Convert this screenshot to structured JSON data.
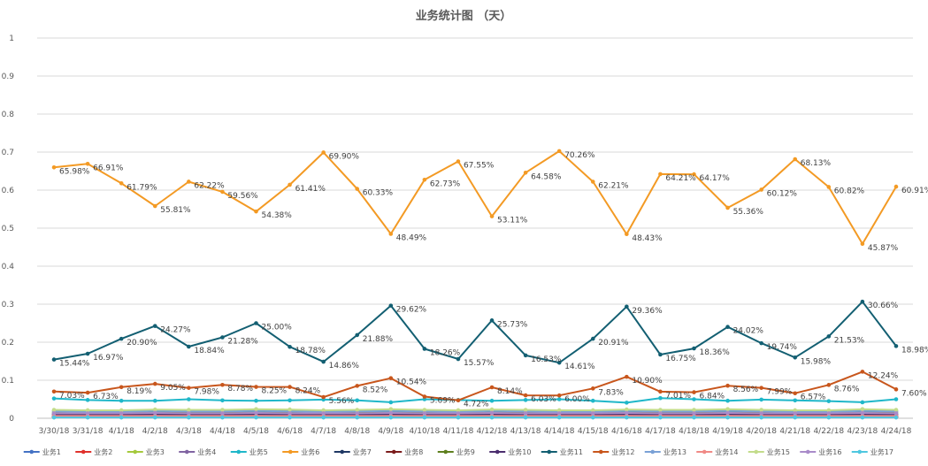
{
  "chart_data": {
    "type": "line",
    "title": "业务统计图 （天）",
    "xlabel": "",
    "ylabel": "",
    "ylim": [
      0,
      1
    ],
    "yticks": [
      "0",
      "0.1",
      "0.2",
      "0.3",
      "0.4",
      "0.5",
      "0.6",
      "0.7",
      "0.8",
      "0.9",
      "1"
    ],
    "grid": true,
    "legend_position": "bottom",
    "categories": [
      "3/30/18",
      "3/31/18",
      "4/1/18",
      "4/2/18",
      "4/3/18",
      "4/4/18",
      "4/5/18",
      "4/6/18",
      "4/7/18",
      "4/8/18",
      "4/9/18",
      "4/10/18",
      "4/11/18",
      "4/12/18",
      "4/13/18",
      "4/14/18",
      "4/15/18",
      "4/16/18",
      "4/17/18",
      "4/18/18",
      "4/19/18",
      "4/20/18",
      "4/21/18",
      "4/22/18",
      "4/23/18",
      "4/24/18"
    ],
    "series": [
      {
        "name": "业务1",
        "color": "#4472c4",
        "values": [
          0.012,
          0.012,
          0.012,
          0.013,
          0.012,
          0.012,
          0.013,
          0.012,
          0.011,
          0.011,
          0.012,
          0.012,
          0.012,
          0.012,
          0.012,
          0.011,
          0.011,
          0.012,
          0.012,
          0.012,
          0.012,
          0.012,
          0.011,
          0.011,
          0.012,
          0.012
        ]
      },
      {
        "name": "业务2",
        "color": "#e0312c",
        "values": [
          0.005,
          0.005,
          0.005,
          0.005,
          0.005,
          0.005,
          0.005,
          0.005,
          0.005,
          0.005,
          0.005,
          0.005,
          0.005,
          0.005,
          0.005,
          0.005,
          0.005,
          0.005,
          0.005,
          0.005,
          0.005,
          0.005,
          0.005,
          0.005,
          0.005,
          0.005
        ]
      },
      {
        "name": "业务3",
        "color": "#a5c93d",
        "values": [
          0.02,
          0.018,
          0.018,
          0.02,
          0.019,
          0.02,
          0.022,
          0.021,
          0.018,
          0.02,
          0.022,
          0.021,
          0.02,
          0.022,
          0.02,
          0.018,
          0.019,
          0.021,
          0.02,
          0.02,
          0.022,
          0.02,
          0.019,
          0.019,
          0.022,
          0.02
        ]
      },
      {
        "name": "业务4",
        "color": "#8064a2",
        "values": [
          0.008,
          0.008,
          0.008,
          0.009,
          0.008,
          0.008,
          0.009,
          0.008,
          0.008,
          0.008,
          0.009,
          0.008,
          0.008,
          0.009,
          0.008,
          0.008,
          0.008,
          0.009,
          0.008,
          0.008,
          0.009,
          0.008,
          0.008,
          0.008,
          0.009,
          0.008
        ]
      },
      {
        "name": "业务5",
        "color": "#1fb7c9",
        "values": [
          0.052,
          0.048,
          0.046,
          0.046,
          0.05,
          0.047,
          0.046,
          0.047,
          0.049,
          0.047,
          0.042,
          0.05,
          0.048,
          0.046,
          0.048,
          0.05,
          0.046,
          0.041,
          0.053,
          0.05,
          0.046,
          0.049,
          0.047,
          0.045,
          0.042,
          0.05
        ]
      },
      {
        "name": "业务6",
        "color": "#f39a24",
        "values": [
          0.6598,
          0.6691,
          0.6179,
          0.5581,
          0.6222,
          0.5956,
          0.5438,
          0.6141,
          0.699,
          0.6033,
          0.4849,
          0.6273,
          0.6755,
          0.5311,
          0.6458,
          0.7026,
          0.6221,
          0.4843,
          0.6421,
          0.6417,
          0.5536,
          0.6012,
          0.6813,
          0.6082,
          0.4587,
          0.6091
        ]
      },
      {
        "name": "业务7",
        "color": "#1f3864",
        "values": [
          0.003,
          0.003,
          0.003,
          0.003,
          0.003,
          0.003,
          0.003,
          0.003,
          0.003,
          0.003,
          0.003,
          0.003,
          0.003,
          0.003,
          0.003,
          0.003,
          0.003,
          0.003,
          0.003,
          0.003,
          0.003,
          0.003,
          0.003,
          0.003,
          0.003,
          0.003
        ]
      },
      {
        "name": "业务8",
        "color": "#7b1c1c",
        "values": [
          0.004,
          0.004,
          0.004,
          0.004,
          0.004,
          0.004,
          0.004,
          0.004,
          0.004,
          0.004,
          0.004,
          0.004,
          0.004,
          0.004,
          0.004,
          0.004,
          0.004,
          0.004,
          0.004,
          0.004,
          0.004,
          0.004,
          0.004,
          0.004,
          0.004,
          0.004
        ]
      },
      {
        "name": "业务9",
        "color": "#5e7f1e",
        "values": [
          0.015,
          0.014,
          0.015,
          0.016,
          0.015,
          0.016,
          0.017,
          0.016,
          0.014,
          0.015,
          0.017,
          0.016,
          0.015,
          0.017,
          0.016,
          0.014,
          0.015,
          0.016,
          0.016,
          0.015,
          0.017,
          0.016,
          0.015,
          0.015,
          0.017,
          0.016
        ]
      },
      {
        "name": "业务10",
        "color": "#4b2d6e",
        "values": [
          0.01,
          0.01,
          0.01,
          0.011,
          0.01,
          0.01,
          0.011,
          0.01,
          0.01,
          0.01,
          0.011,
          0.01,
          0.01,
          0.011,
          0.01,
          0.01,
          0.01,
          0.011,
          0.01,
          0.01,
          0.011,
          0.01,
          0.01,
          0.01,
          0.011,
          0.01
        ]
      },
      {
        "name": "业务11",
        "color": "#135f72",
        "values": [
          0.1544,
          0.1697,
          0.209,
          0.2427,
          0.1884,
          0.2128,
          0.25,
          0.1878,
          0.1486,
          0.2188,
          0.2962,
          0.1826,
          0.1557,
          0.2573,
          0.1653,
          0.1461,
          0.2091,
          0.2936,
          0.1675,
          0.1836,
          0.2402,
          0.1974,
          0.1598,
          0.2153,
          0.3066,
          0.1898
        ]
      },
      {
        "name": "业务12",
        "color": "#c8561c",
        "values": [
          0.0703,
          0.0673,
          0.0819,
          0.0905,
          0.0798,
          0.0878,
          0.0825,
          0.0824,
          0.0556,
          0.0852,
          0.1054,
          0.0569,
          0.0472,
          0.0814,
          0.0603,
          0.06,
          0.0783,
          0.109,
          0.0701,
          0.0684,
          0.0856,
          0.0799,
          0.0657,
          0.0876,
          0.1224,
          0.076
        ]
      },
      {
        "name": "业务13",
        "color": "#7aa1d6",
        "values": [
          0.018,
          0.017,
          0.017,
          0.019,
          0.018,
          0.018,
          0.019,
          0.018,
          0.017,
          0.018,
          0.019,
          0.018,
          0.017,
          0.019,
          0.018,
          0.017,
          0.017,
          0.019,
          0.018,
          0.018,
          0.019,
          0.018,
          0.017,
          0.017,
          0.019,
          0.018
        ]
      },
      {
        "name": "业务14",
        "color": "#f08a86",
        "values": [
          0.006,
          0.006,
          0.006,
          0.006,
          0.006,
          0.006,
          0.006,
          0.006,
          0.006,
          0.006,
          0.006,
          0.006,
          0.006,
          0.006,
          0.006,
          0.006,
          0.006,
          0.006,
          0.006,
          0.006,
          0.006,
          0.006,
          0.006,
          0.006,
          0.006,
          0.006
        ]
      },
      {
        "name": "业务15",
        "color": "#c3dc8b",
        "values": [
          0.022,
          0.021,
          0.021,
          0.023,
          0.022,
          0.022,
          0.024,
          0.023,
          0.021,
          0.022,
          0.024,
          0.022,
          0.021,
          0.023,
          0.022,
          0.021,
          0.021,
          0.023,
          0.022,
          0.022,
          0.024,
          0.022,
          0.021,
          0.021,
          0.024,
          0.022
        ]
      },
      {
        "name": "业务16",
        "color": "#a98bc9",
        "values": [
          0.013,
          0.013,
          0.013,
          0.014,
          0.013,
          0.013,
          0.014,
          0.013,
          0.013,
          0.013,
          0.014,
          0.013,
          0.013,
          0.014,
          0.013,
          0.013,
          0.013,
          0.014,
          0.013,
          0.013,
          0.014,
          0.013,
          0.013,
          0.013,
          0.014,
          0.013
        ]
      },
      {
        "name": "业务17",
        "color": "#4fc7e0",
        "values": [
          0.002,
          0.002,
          0.002,
          0.002,
          0.002,
          0.002,
          0.002,
          0.002,
          0.002,
          0.002,
          0.002,
          0.002,
          0.002,
          0.002,
          0.002,
          0.002,
          0.002,
          0.002,
          0.002,
          0.002,
          0.002,
          0.002,
          0.002,
          0.002,
          0.002,
          0.002
        ]
      }
    ],
    "data_labels": {
      "业务6": [
        "65.98%",
        "66.91%",
        "61.79%",
        "55.81%",
        "62.22%",
        "59.56%",
        "54.38%",
        "61.41%",
        "69.90%",
        "60.33%",
        "48.49%",
        "62.73%",
        "67.55%",
        "53.11%",
        "64.58%",
        "70.26%",
        "62.21%",
        "48.43%",
        "64.21%",
        "64.17%",
        "55.36%",
        "60.12%",
        "68.13%",
        "60.82%",
        "45.87%",
        "60.91%"
      ],
      "业务11": [
        "15.44%",
        "16.97%",
        "20.90%",
        "24.27%",
        "18.84%",
        "21.28%",
        "25.00%",
        "18.78%",
        "14.86%",
        "21.88%",
        "29.62%",
        "18.26%",
        "15.57%",
        "25.73%",
        "16.53%",
        "14.61%",
        "20.91%",
        "29.36%",
        "16.75%",
        "18.36%",
        "24.02%",
        "19.74%",
        "15.98%",
        "21.53%",
        "30.66%",
        "18.98%"
      ],
      "业务12": [
        "7.03%",
        "6.73%",
        "8.19%",
        "9.05%",
        "7.98%",
        "8.78%",
        "8.25%",
        "8.24%",
        "5.56%",
        "8.52%",
        "10.54%",
        "5.69%",
        "4.72%",
        "8.14%",
        "6.03%",
        "6.00%",
        "7.83%",
        "10.90%",
        "7.01%",
        "6.84%",
        "8.56%",
        "7.99%",
        "6.57%",
        "8.76%",
        "12.24%",
        "7.60%"
      ]
    }
  }
}
